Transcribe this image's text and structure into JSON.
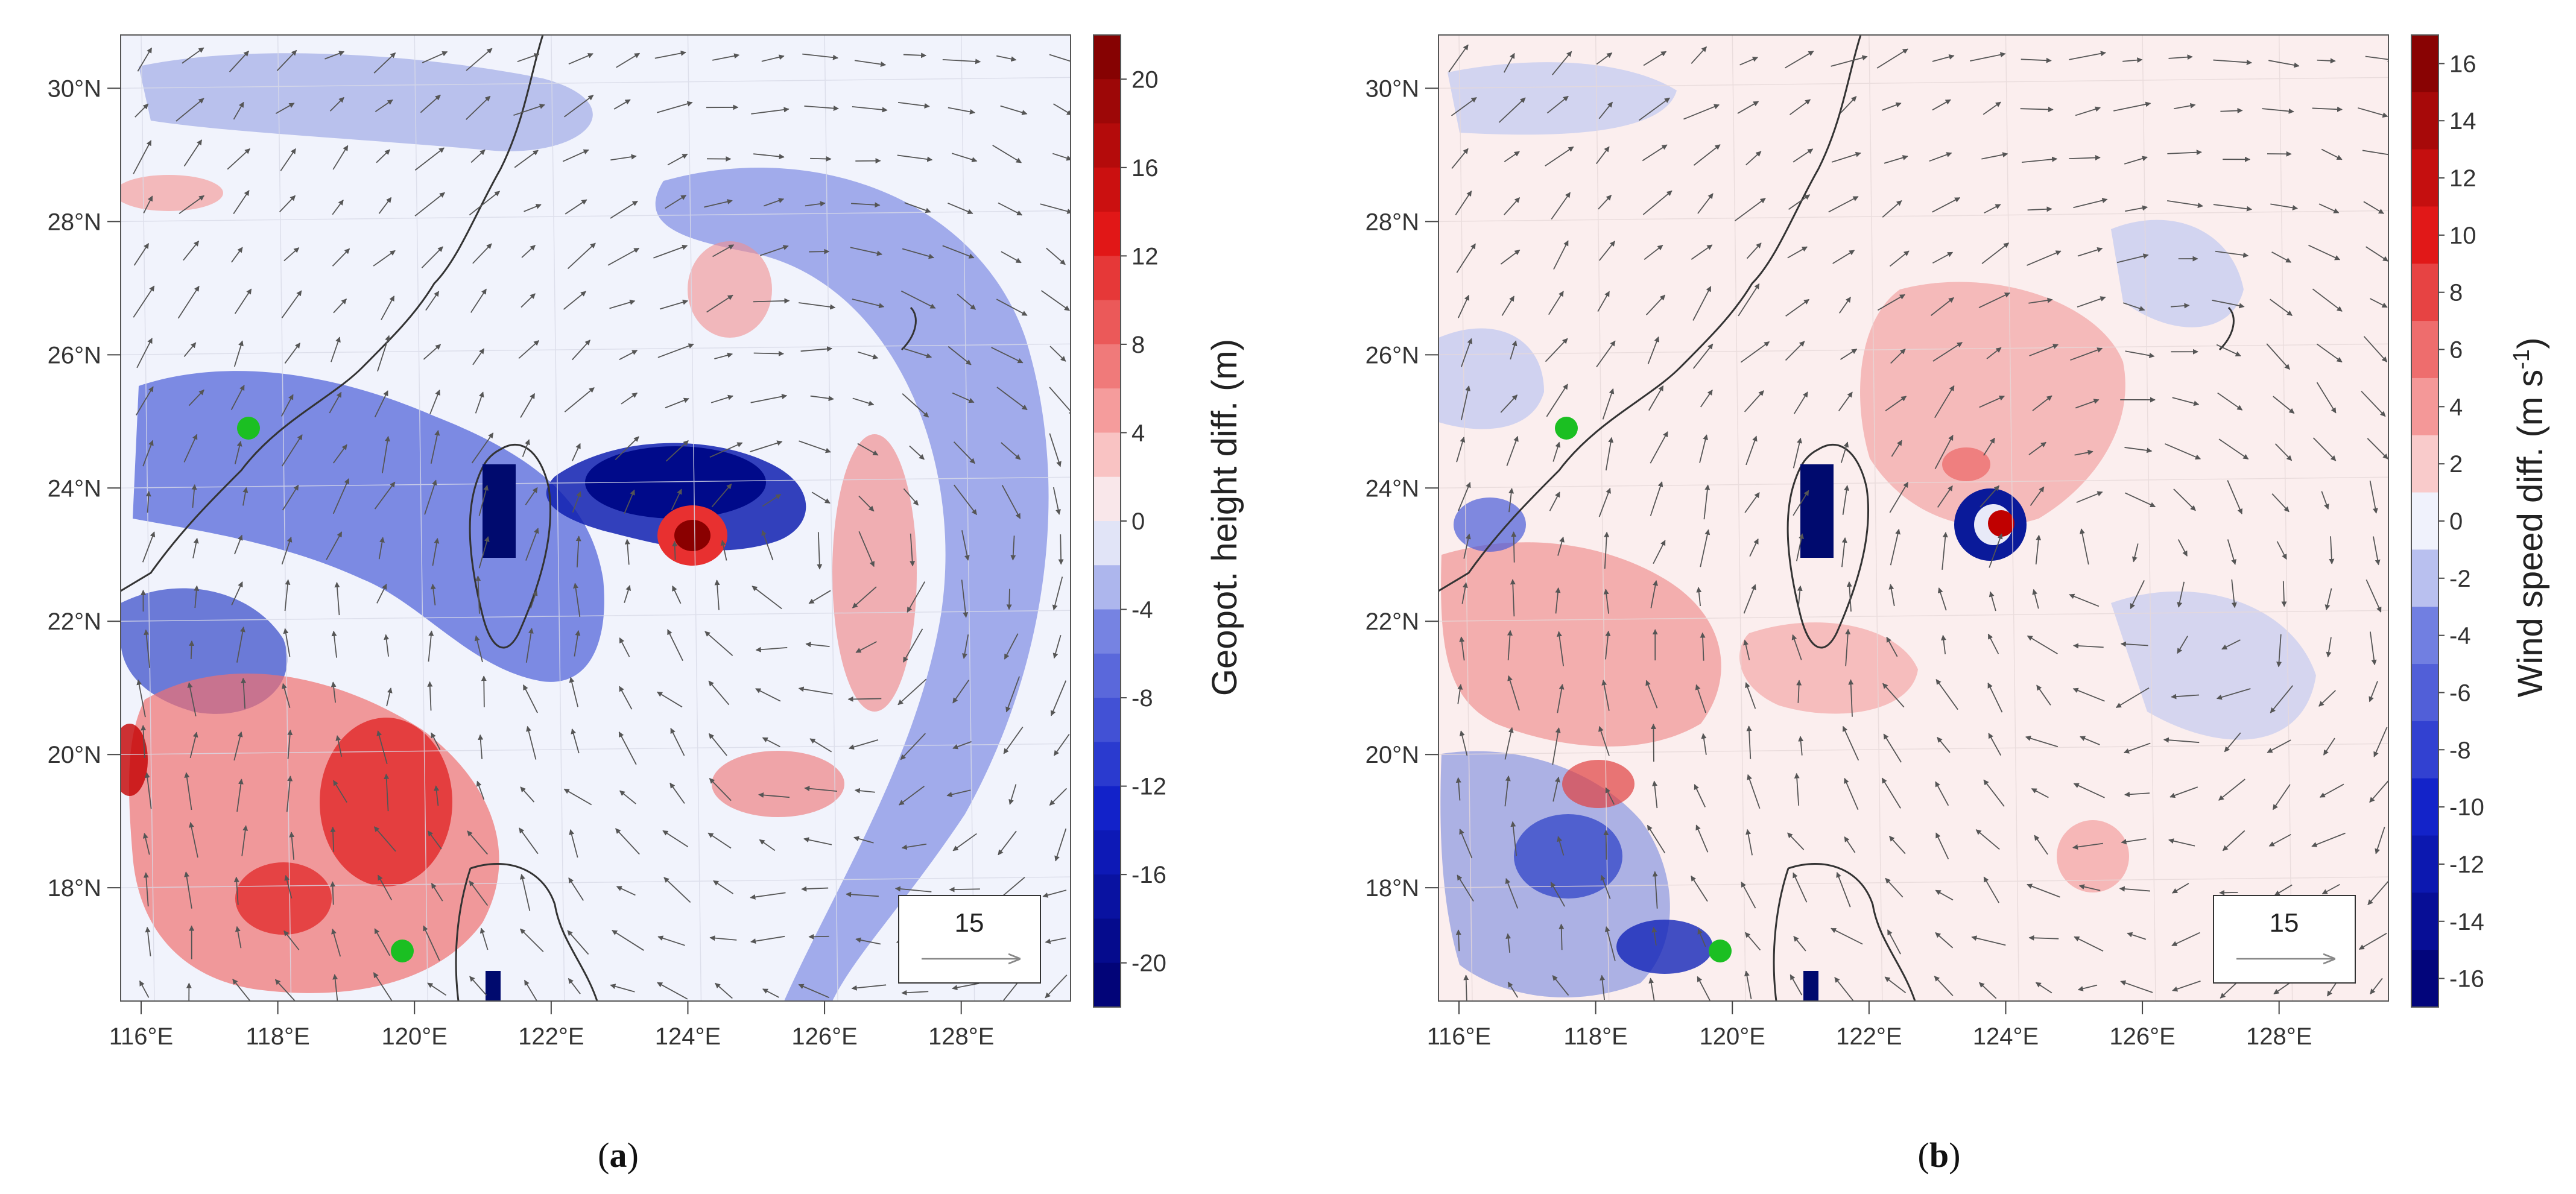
{
  "panels": [
    {
      "id": "a",
      "caption_open": "(",
      "caption_letter": "a",
      "caption_close": ")",
      "colorbar_label": "Geopot. height diff. (m)",
      "colorbar_ticks": [
        "20",
        "16",
        "12",
        "8",
        "4",
        "0",
        "-4",
        "-8",
        "-12",
        "-16",
        "-20"
      ],
      "colorbar_range": [
        -22,
        22
      ],
      "colorbar_levels": 22,
      "reference_vector_label": "15"
    },
    {
      "id": "b",
      "caption_open": "(",
      "caption_letter": "b",
      "caption_close": ")",
      "colorbar_label_main": "Wind speed diff. (m s",
      "colorbar_label_sup": "-1",
      "colorbar_label_end": ")",
      "colorbar_ticks": [
        "16",
        "14",
        "12",
        "10",
        "8",
        "6",
        "4",
        "2",
        "0",
        "-2",
        "-4",
        "-6",
        "-8",
        "-10",
        "-12",
        "-14",
        "-16"
      ],
      "colorbar_range": [
        -17,
        17
      ],
      "colorbar_levels": 17,
      "reference_vector_label": "15"
    }
  ],
  "map": {
    "lat_labels": [
      "30°N",
      "28°N",
      "26°N",
      "24°N",
      "22°N",
      "20°N",
      "18°N"
    ],
    "lon_labels": [
      "116°E",
      "118°E",
      "120°E",
      "122°E",
      "124°E",
      "126°E",
      "128°E"
    ],
    "lat_values": [
      30,
      28,
      26,
      24,
      22,
      20,
      18
    ],
    "lon_values": [
      116,
      118,
      120,
      122,
      124,
      126,
      128
    ],
    "lat_range": [
      16.3,
      30.8
    ],
    "lon_range": [
      115.7,
      129.6
    ]
  },
  "colors": {
    "marker": "#1bbf22",
    "coast": "#333333",
    "arrow": "#555555",
    "pos_max": "#7a0000",
    "neg_max": "#00006e"
  }
}
